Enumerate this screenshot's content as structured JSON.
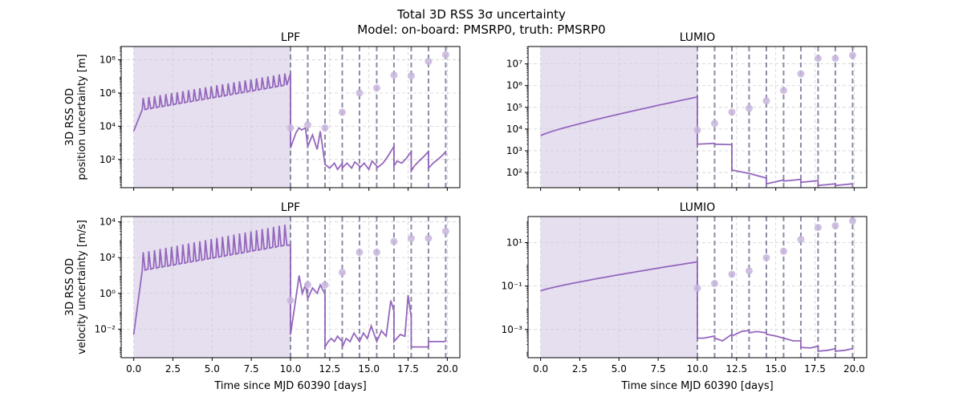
{
  "figure": {
    "suptitle_line1": "Total 3D RSS 3σ uncertainty",
    "suptitle_line2": "Model: on-board: PMSRP0, truth: PMSRP0"
  },
  "colors": {
    "line": "#9467bd",
    "shade": "#e6dff0",
    "marker": "#c8b5dd",
    "vline": "#8c8aa6",
    "grid": "#d0d0d0"
  },
  "chart_data": [
    {
      "id": "lpf-pos",
      "type": "line",
      "title": "LPF",
      "ylabel_lines": [
        "3D RSS OD",
        "position uncertainty [m]"
      ],
      "xlabel": "",
      "xlim": [
        -0.8,
        20.8
      ],
      "yscale": "log",
      "ylim_exp": [
        0.3,
        8.8
      ],
      "x_ticks": [
        0,
        2.5,
        5,
        7.5,
        10,
        12.5,
        15,
        17.5,
        20
      ],
      "x_tick_labels": [
        "",
        "",
        "",
        "",
        "",
        "",
        "",
        "",
        ""
      ],
      "y_tick_exps": [
        2,
        4,
        6,
        8
      ],
      "y_tick_labels": [
        "10²",
        "10⁴",
        "10⁶",
        "10⁸"
      ],
      "shade_range": [
        0,
        10
      ],
      "vlines": [
        10,
        11.1,
        12.2,
        13.3,
        14.4,
        15.5,
        16.6,
        17.7,
        18.8,
        19.9
      ],
      "markers": [
        [
          10,
          8000
        ],
        [
          11.1,
          12000
        ],
        [
          12.2,
          8000
        ],
        [
          13.3,
          70000
        ],
        [
          14.4,
          1000000
        ],
        [
          15.5,
          2000000
        ],
        [
          16.6,
          12000000
        ],
        [
          17.7,
          11000000
        ],
        [
          18.8,
          80000000
        ],
        [
          19.9,
          200000000
        ]
      ],
      "trend": {
        "start_x": 0,
        "start_val": 5000,
        "peak_start": 500000,
        "peak_end": 15000000,
        "trough_start": 100000,
        "trough_end": 3000000,
        "n_peaks": 26,
        "end_val": 15000000
      },
      "tracking_segments": [
        {
          "x": [
            10.0,
            10.35,
            10.55,
            10.7,
            10.95,
            11.1
          ],
          "y": [
            500,
            4000,
            8000,
            6000,
            8000,
            600
          ]
        },
        {
          "x": [
            11.1,
            11.4,
            11.7,
            11.9,
            12.2
          ],
          "y": [
            600,
            3000,
            400,
            5000,
            50
          ]
        },
        {
          "x": [
            12.2,
            12.5,
            12.8,
            13.0,
            13.3
          ],
          "y": [
            50,
            30,
            60,
            25,
            60
          ]
        },
        {
          "x": [
            13.3,
            13.6,
            13.9,
            14.1,
            14.4
          ],
          "y": [
            30,
            60,
            30,
            70,
            40
          ]
        },
        {
          "x": [
            14.4,
            14.7,
            15.0,
            15.2,
            15.5
          ],
          "y": [
            30,
            60,
            25,
            80,
            40
          ]
        },
        {
          "x": [
            15.5,
            15.9,
            16.2,
            16.4,
            16.6
          ],
          "y": [
            30,
            60,
            150,
            300,
            600
          ]
        },
        {
          "x": [
            16.6,
            16.8,
            17.1,
            17.4,
            17.7
          ],
          "y": [
            40,
            80,
            60,
            120,
            300
          ]
        },
        {
          "x": [
            17.7,
            17.9,
            18.2,
            18.5,
            18.8
          ],
          "y": [
            20,
            40,
            80,
            150,
            300
          ]
        },
        {
          "x": [
            18.8,
            19.1,
            19.4,
            19.7,
            19.9
          ],
          "y": [
            30,
            60,
            100,
            180,
            300
          ]
        }
      ]
    },
    {
      "id": "lumio-pos",
      "type": "line",
      "title": "LUMIO",
      "ylabel_lines": [],
      "xlabel": "",
      "xlim": [
        -0.8,
        20.8
      ],
      "yscale": "log",
      "ylim_exp": [
        1.3,
        7.8
      ],
      "x_ticks": [
        0,
        2.5,
        5,
        7.5,
        10,
        12.5,
        15,
        17.5,
        20
      ],
      "x_tick_labels": [
        "",
        "",
        "",
        "",
        "",
        "",
        "",
        "",
        ""
      ],
      "y_tick_exps": [
        2,
        3,
        4,
        5,
        6,
        7
      ],
      "y_tick_labels": [
        "10²",
        "10³",
        "10⁴",
        "10⁵",
        "10⁶",
        "10⁷"
      ],
      "shade_range": [
        0,
        10
      ],
      "vlines": [
        10,
        11.1,
        12.2,
        13.3,
        14.4,
        15.5,
        16.6,
        17.7,
        18.8,
        19.9
      ],
      "markers": [
        [
          10,
          9000
        ],
        [
          11.1,
          18000
        ],
        [
          12.2,
          60000
        ],
        [
          13.3,
          90000
        ],
        [
          14.4,
          200000
        ],
        [
          15.5,
          600000
        ],
        [
          16.6,
          3500000
        ],
        [
          17.7,
          18000000
        ],
        [
          18.8,
          18000000
        ],
        [
          19.9,
          25000000
        ]
      ],
      "trend": {
        "start_x": 0,
        "start_val": 5000,
        "end_val": 300000
      },
      "tracking_segments": [
        {
          "x": [
            10.0,
            11.1
          ],
          "y": [
            2000,
            2200
          ]
        },
        {
          "x": [
            11.1,
            12.2
          ],
          "y": [
            2000,
            1900
          ]
        },
        {
          "x": [
            12.2,
            13.3
          ],
          "y": [
            130,
            90
          ]
        },
        {
          "x": [
            13.3,
            14.4
          ],
          "y": [
            90,
            55
          ]
        },
        {
          "x": [
            14.4,
            15.5
          ],
          "y": [
            30,
            45
          ]
        },
        {
          "x": [
            15.5,
            16.6
          ],
          "y": [
            40,
            48
          ]
        },
        {
          "x": [
            16.6,
            17.7
          ],
          "y": [
            35,
            42
          ]
        },
        {
          "x": [
            17.7,
            18.8
          ],
          "y": [
            25,
            30
          ]
        },
        {
          "x": [
            18.8,
            19.9
          ],
          "y": [
            25,
            30
          ]
        }
      ]
    },
    {
      "id": "lpf-vel",
      "type": "line",
      "title": "LPF",
      "ylabel_lines": [
        "3D RSS OD",
        "velocity uncertainty [m/s]"
      ],
      "xlabel": "Time since MJD 60390 [days]",
      "xlim": [
        -0.8,
        20.8
      ],
      "yscale": "log",
      "ylim_exp": [
        -3.6,
        4.3
      ],
      "x_ticks": [
        0,
        2.5,
        5,
        7.5,
        10,
        12.5,
        15,
        17.5,
        20
      ],
      "x_tick_labels": [
        "0.0",
        "2.5",
        "5.0",
        "7.5",
        "10.0",
        "12.5",
        "15.0",
        "17.5",
        "20.0"
      ],
      "y_tick_exps": [
        -2,
        0,
        2,
        4
      ],
      "y_tick_labels": [
        "10⁻²",
        "10⁰",
        "10²",
        "10⁴"
      ],
      "shade_range": [
        0,
        10
      ],
      "vlines": [
        10,
        11.1,
        12.2,
        13.3,
        14.4,
        15.5,
        16.6,
        17.7,
        18.8,
        19.9
      ],
      "markers": [
        [
          10,
          0.4
        ],
        [
          11.1,
          3
        ],
        [
          12.2,
          3
        ],
        [
          13.3,
          15
        ],
        [
          14.4,
          200
        ],
        [
          15.5,
          200
        ],
        [
          16.6,
          800
        ],
        [
          17.7,
          1200
        ],
        [
          18.8,
          1200
        ],
        [
          19.9,
          3000
        ]
      ],
      "trend": {
        "start_x": 0,
        "start_val": 0.005,
        "peak_start": 200,
        "peak_end": 7000,
        "trough_start": 20,
        "trough_end": 500,
        "n_peaks": 26,
        "end_val": 500
      },
      "tracking_segments": [
        {
          "x": [
            10.0,
            10.3,
            10.55,
            10.75,
            10.95,
            11.1
          ],
          "y": [
            0.005,
            0.3,
            10,
            1,
            3,
            0.5
          ]
        },
        {
          "x": [
            11.1,
            11.4,
            11.7,
            11.9,
            12.2
          ],
          "y": [
            0.5,
            2,
            1,
            3,
            0.9
          ]
        },
        {
          "x": [
            12.2,
            12.4,
            12.6,
            12.8,
            13.0,
            13.3
          ],
          "y": [
            0.001,
            0.002,
            0.003,
            0.002,
            0.004,
            0.002
          ]
        },
        {
          "x": [
            13.3,
            13.55,
            13.8,
            14.05,
            14.4
          ],
          "y": [
            0.001,
            0.003,
            0.002,
            0.006,
            0.002
          ]
        },
        {
          "x": [
            14.4,
            14.65,
            14.9,
            15.15,
            15.5
          ],
          "y": [
            0.002,
            0.006,
            0.003,
            0.015,
            0.002
          ]
        },
        {
          "x": [
            15.5,
            15.8,
            16.1,
            16.4,
            16.6
          ],
          "y": [
            0.002,
            0.008,
            0.004,
            0.4,
            0.1
          ]
        },
        {
          "x": [
            16.6,
            17.0,
            17.3,
            17.5,
            17.7
          ],
          "y": [
            0.002,
            0.005,
            0.004,
            0.8,
            0.05
          ]
        },
        {
          "x": [
            17.7,
            18.3,
            18.8
          ],
          "y": [
            0.001,
            0.001,
            0.001
          ]
        },
        {
          "x": [
            18.8,
            19.9
          ],
          "y": [
            0.002,
            0.002
          ]
        }
      ]
    },
    {
      "id": "lumio-vel",
      "type": "line",
      "title": "LUMIO",
      "ylabel_lines": [],
      "xlabel": "Time since MJD 60390 [days]",
      "xlim": [
        -0.8,
        20.8
      ],
      "yscale": "log",
      "ylim_exp": [
        -4.3,
        2.2
      ],
      "x_ticks": [
        0,
        2.5,
        5,
        7.5,
        10,
        12.5,
        15,
        17.5,
        20
      ],
      "x_tick_labels": [
        "0.0",
        "2.5",
        "5.0",
        "7.5",
        "10.0",
        "12.5",
        "15.0",
        "17.5",
        "20.0"
      ],
      "y_tick_exps": [
        -3,
        -1,
        1
      ],
      "y_tick_labels": [
        "10⁻³",
        "10⁻¹",
        "10¹"
      ],
      "shade_range": [
        0,
        10
      ],
      "vlines": [
        10,
        11.1,
        12.2,
        13.3,
        14.4,
        15.5,
        16.6,
        17.7,
        18.8,
        19.9
      ],
      "markers": [
        [
          10,
          0.08
        ],
        [
          11.1,
          0.13
        ],
        [
          12.2,
          0.35
        ],
        [
          13.3,
          0.5
        ],
        [
          14.4,
          2
        ],
        [
          15.5,
          4
        ],
        [
          16.6,
          14
        ],
        [
          17.7,
          50
        ],
        [
          18.8,
          60
        ],
        [
          19.9,
          100
        ]
      ],
      "trend": {
        "start_x": 0,
        "start_val": 0.06,
        "end_val": 1.3
      },
      "tracking_segments": [
        {
          "x": [
            10.0,
            10.4,
            11.1
          ],
          "y": [
            0.0004,
            0.0004,
            0.0005
          ]
        },
        {
          "x": [
            11.1,
            11.6,
            12.2
          ],
          "y": [
            0.0004,
            0.0003,
            0.0006
          ]
        },
        {
          "x": [
            12.2,
            12.8,
            13.3
          ],
          "y": [
            0.0005,
            0.0008,
            0.0009
          ]
        },
        {
          "x": [
            13.3,
            13.8,
            14.4
          ],
          "y": [
            0.0007,
            0.0008,
            0.0007
          ]
        },
        {
          "x": [
            14.4,
            15.0,
            15.5
          ],
          "y": [
            0.0006,
            0.0005,
            0.0004
          ]
        },
        {
          "x": [
            15.5,
            16.1,
            16.6
          ],
          "y": [
            0.0004,
            0.0003,
            0.0003
          ]
        },
        {
          "x": [
            16.6,
            17.2,
            17.7
          ],
          "y": [
            0.00015,
            0.00014,
            0.00017
          ]
        },
        {
          "x": [
            17.7,
            18.3,
            18.8
          ],
          "y": [
            0.0001,
            0.00011,
            0.00013
          ]
        },
        {
          "x": [
            18.8,
            19.4,
            19.9
          ],
          "y": [
            0.0001,
            0.00011,
            0.00013
          ]
        }
      ]
    }
  ]
}
